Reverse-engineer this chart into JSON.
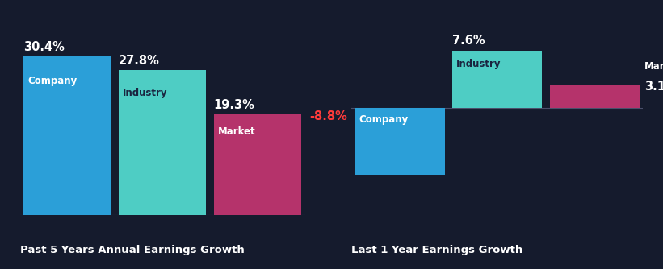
{
  "background_color": "#151b2d",
  "left_chart": {
    "title": "Past 5 Years Annual Earnings Growth",
    "bars": [
      {
        "label": "Company",
        "value": 30.4,
        "color": "#2b9fd8"
      },
      {
        "label": "Industry",
        "value": 27.8,
        "color": "#4ecdc4"
      },
      {
        "label": "Market",
        "value": 19.3,
        "color": "#b5336b"
      }
    ]
  },
  "right_chart": {
    "title": "Last 1 Year Earnings Growth",
    "bars": [
      {
        "label": "Company",
        "value": -8.8,
        "color": "#2b9fd8"
      },
      {
        "label": "Industry",
        "value": 7.6,
        "color": "#4ecdc4"
      },
      {
        "label": "Market",
        "value": 3.1,
        "color": "#b5336b"
      }
    ]
  },
  "text_color": "#ffffff",
  "label_inside_color_dark": "#1a2540",
  "label_fontsize": 8.5,
  "value_fontsize": 10.5,
  "title_fontsize": 9.5,
  "negative_value_color": "#ff3b3b"
}
